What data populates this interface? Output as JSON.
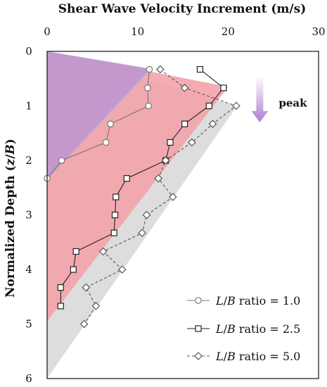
{
  "chart_data": {
    "type": "line",
    "title": "",
    "xlabel": "Shear Wave Velocity Increment (m/s)",
    "ylabel_main": "Normalized Depth (",
    "ylabel_var": "z",
    "ylabel_sep": "/",
    "ylabel_var2": "B",
    "ylabel_end": ")",
    "xlim": [
      0,
      30
    ],
    "ylim": [
      0,
      6
    ],
    "x_ticks": [
      "0",
      "10",
      "20",
      "30"
    ],
    "y_ticks": [
      "0",
      "1",
      "2",
      "3",
      "4",
      "5",
      "6"
    ],
    "x_axis_position": "top",
    "y_inverted": true,
    "grid": false,
    "legend_position": "bottom-right",
    "annotation": {
      "text": "peak",
      "arrow_x": 23.5,
      "arrow_y_from": 0.45,
      "arrow_y_to": 1.3,
      "arrow_color": "#b07cd0"
    },
    "bands": [
      {
        "color": "#d9d9d9",
        "points": [
          [
            0,
            0
          ],
          [
            21,
            1.0
          ],
          [
            0,
            6
          ]
        ]
      },
      {
        "color": "#f2a3a8",
        "points": [
          [
            0,
            0
          ],
          [
            20,
            0.65
          ],
          [
            0,
            4.95
          ]
        ]
      },
      {
        "color": "#a0a8f0",
        "points": [
          [
            0,
            0
          ],
          [
            11.5,
            0.32
          ],
          [
            0,
            2.35
          ]
        ]
      },
      {
        "color": "#c895c8",
        "points": [
          [
            0,
            0
          ],
          [
            11.2,
            0.32
          ],
          [
            0,
            2.35
          ]
        ]
      }
    ],
    "series": [
      {
        "name": "ratio = 1.0",
        "marker": "circle",
        "dash": "solid",
        "stroke": "#777777",
        "x": [
          11.3,
          11.1,
          11.2,
          7.0,
          6.5,
          1.6,
          0.0
        ],
        "y": [
          0.33,
          0.67,
          1.0,
          1.33,
          1.67,
          2.0,
          2.33
        ]
      },
      {
        "name": "ratio = 2.5",
        "marker": "square",
        "dash": "solid",
        "stroke": "#222222",
        "x": [
          16.9,
          19.5,
          17.9,
          15.2,
          13.6,
          13.1,
          8.8,
          7.6,
          7.5,
          7.4,
          3.2,
          2.9,
          1.5,
          1.5
        ],
        "y": [
          0.33,
          0.67,
          1.0,
          1.33,
          1.67,
          2.0,
          2.33,
          2.67,
          3.0,
          3.33,
          3.67,
          4.0,
          4.33,
          4.67
        ],
        "stop_at_index": 14
      },
      {
        "name": "ratio = 5.0",
        "marker": "diamond",
        "dash": "dashed",
        "stroke": "#555555",
        "x": [
          12.5,
          15.2,
          20.9,
          18.3,
          16.0,
          13.1,
          12.3,
          13.9,
          11.0,
          10.5,
          6.2,
          8.3,
          4.3,
          5.4,
          4.1
        ],
        "y": [
          0.33,
          0.67,
          1.0,
          1.33,
          1.67,
          2.0,
          2.33,
          2.67,
          3.0,
          3.33,
          3.67,
          4.0,
          4.33,
          4.67,
          5.0
        ]
      }
    ],
    "legend": [
      {
        "var": "L",
        "sep": "/",
        "var2": "B",
        "text": " ratio = 1.0"
      },
      {
        "var": "L",
        "sep": "/",
        "var2": "B",
        "text": " ratio = 2.5"
      },
      {
        "var": "L",
        "sep": "/",
        "var2": "B",
        "text": " ratio = 5.0"
      }
    ]
  }
}
